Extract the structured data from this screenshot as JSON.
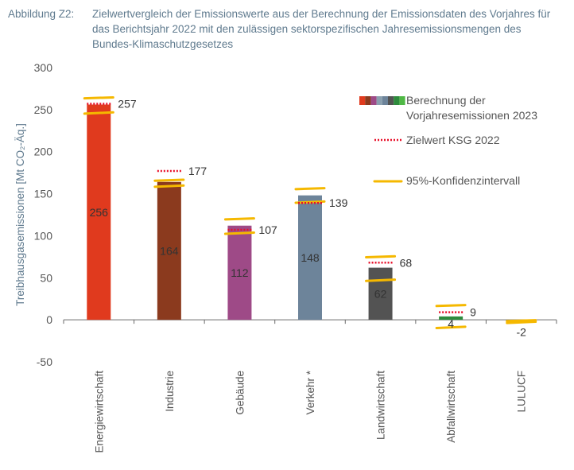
{
  "figure": {
    "label": "Abbildung Z2:",
    "caption": "Zielwertvergleich der Emissionswerte aus der Berechnung der Emissionsdaten des Vorjahres für das Berichtsjahr 2022 mit den zulässigen sektorspezifischen Jahresemissionsmengen des Bundes-Klimaschutzgesetzes"
  },
  "chart_data": {
    "type": "bar",
    "ylabel": "Treibhausgasemissionen [Mt CO₂-Äq.]",
    "ylim": [
      -50,
      300
    ],
    "yticks": [
      -50,
      0,
      50,
      100,
      150,
      200,
      250,
      300
    ],
    "grid": false,
    "legend_position": "top-right",
    "categories": [
      "Energiewirtschaft",
      "Industrie",
      "Gebäude",
      "Verkehr *",
      "Landwirtschaft",
      "Abfallwirtschaft",
      "LULUCF"
    ],
    "series": [
      {
        "name": "Berechnung der Vorjahresemissionen 2023",
        "values": [
          256,
          164,
          112,
          148,
          62,
          4,
          -2
        ],
        "value_labels": [
          "256",
          "164",
          "112",
          "148",
          "62",
          "4",
          "-2"
        ],
        "colors": [
          "#e03a1e",
          "#8b3a1e",
          "#9e4a87",
          "#6d849a",
          "#535353",
          "#2e8b3d",
          "#8aa0b0"
        ]
      },
      {
        "name": "Zielwert KSG 2022",
        "values": [
          257,
          177,
          107,
          139,
          68,
          9,
          null
        ],
        "value_labels": [
          "257",
          "177",
          "107",
          "139",
          "68",
          "9",
          ""
        ]
      },
      {
        "name": "95%-Konfidenzintervall",
        "lower": [
          246,
          159,
          103,
          140,
          47,
          -9,
          -3
        ],
        "upper": [
          264,
          166,
          120,
          156,
          75,
          17,
          -1
        ]
      }
    ],
    "legend_swatch_colors": [
      "#e03a1e",
      "#8b3a1e",
      "#9e4a87",
      "#8aa0b0",
      "#6d849a",
      "#535353",
      "#2e8b3d",
      "#4fb845"
    ],
    "target_color": "#e8102a",
    "ci_color": "#f5b800",
    "axis_color": "#6a6a6a"
  }
}
